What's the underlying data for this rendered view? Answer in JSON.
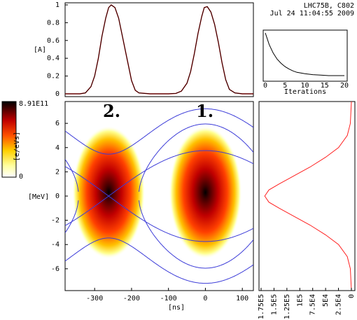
{
  "header": {
    "line1": "LHC75B, C802",
    "line2": "Jul 24 11:04:55 2009"
  },
  "chart_data": [
    {
      "id": "profile",
      "type": "line",
      "ylabel": "[A]",
      "xlim": [
        -380,
        130
      ],
      "ylim": [
        0,
        1
      ],
      "yticks": [
        "0",
        "0.2",
        "0.4",
        "0.6",
        "0.8",
        "1"
      ],
      "series": [
        {
          "color": "#cc0000",
          "x": [
            -380,
            -340,
            -325,
            -310,
            -300,
            -290,
            -280,
            -270,
            -262,
            -255,
            -245,
            -235,
            -225,
            -215,
            -205,
            -200,
            -190,
            -180,
            -150,
            -100,
            -80,
            -65,
            -50,
            -40,
            -30,
            -20,
            -10,
            -3,
            5,
            15,
            25,
            35,
            45,
            55,
            65,
            80,
            100,
            130
          ],
          "y": [
            0,
            0,
            0.01,
            0.08,
            0.2,
            0.4,
            0.65,
            0.85,
            0.97,
            1.0,
            0.97,
            0.85,
            0.65,
            0.45,
            0.25,
            0.15,
            0.04,
            0.01,
            0,
            0,
            0.005,
            0.03,
            0.12,
            0.25,
            0.45,
            0.68,
            0.87,
            0.97,
            0.98,
            0.92,
            0.78,
            0.58,
            0.35,
            0.16,
            0.05,
            0.01,
            0,
            0
          ]
        },
        {
          "color": "#000000",
          "x": [
            -380,
            -340,
            -325,
            -310,
            -300,
            -290,
            -280,
            -270,
            -262,
            -255,
            -245,
            -235,
            -225,
            -215,
            -205,
            -200,
            -190,
            -180,
            -150,
            -100,
            -80,
            -65,
            -50,
            -40,
            -30,
            -20,
            -10,
            -3,
            5,
            15,
            25,
            35,
            45,
            55,
            65,
            80,
            100,
            130
          ],
          "y": [
            0,
            0,
            0.01,
            0.08,
            0.2,
            0.4,
            0.65,
            0.85,
            0.97,
            1.0,
            0.97,
            0.85,
            0.65,
            0.45,
            0.25,
            0.15,
            0.04,
            0.01,
            0,
            0,
            0.005,
            0.03,
            0.12,
            0.25,
            0.45,
            0.68,
            0.87,
            0.97,
            0.98,
            0.92,
            0.78,
            0.58,
            0.35,
            0.16,
            0.05,
            0.01,
            0,
            0
          ]
        }
      ]
    },
    {
      "id": "iterations",
      "type": "line",
      "xlabel": "Iterations",
      "xlim": [
        0,
        20
      ],
      "xticks": [
        "0",
        "5",
        "10",
        "15",
        "20"
      ],
      "series": [
        {
          "color": "#000000",
          "x": [
            0,
            1,
            2,
            3,
            4,
            5,
            6,
            7,
            8,
            10,
            12,
            14,
            16,
            18,
            20
          ],
          "y": [
            1.0,
            0.75,
            0.57,
            0.44,
            0.35,
            0.28,
            0.23,
            0.19,
            0.16,
            0.13,
            0.11,
            0.1,
            0.09,
            0.09,
            0.09
          ]
        }
      ]
    },
    {
      "id": "phase-space",
      "type": "heatmap",
      "xlabel": "[ns]",
      "ylabel": "[MeV]",
      "xlim": [
        -380,
        130
      ],
      "ylim": [
        -7.8,
        7.8
      ],
      "xticks": [
        "-300",
        "-200",
        "-100",
        "0",
        "100"
      ],
      "yticks": [
        "-6",
        "-4",
        "-2",
        "0",
        "2",
        "4",
        "6"
      ],
      "annotations": [
        "2.",
        "1."
      ],
      "bunch_centers_ns": [
        -262,
        0
      ],
      "separatrix_color": "#3c3cd8"
    },
    {
      "id": "energy-projection",
      "type": "line",
      "xticks": [
        "1.75E5",
        "1.5E5",
        "1.25E5",
        "1E5",
        "7.5E4",
        "5E4",
        "2.5E4",
        "0"
      ],
      "series": [
        {
          "color": "#ff2020",
          "x": [
            0,
            2000,
            8000,
            25000,
            50000,
            80000,
            110000,
            140000,
            160000,
            168000,
            160000,
            140000,
            110000,
            80000,
            50000,
            25000,
            8000,
            2000,
            0
          ],
          "y": [
            7.8,
            6.0,
            5.0,
            4.0,
            3.2,
            2.4,
            1.7,
            1.0,
            0.5,
            0,
            -0.5,
            -1.0,
            -1.7,
            -2.4,
            -3.2,
            -4.0,
            -5.0,
            -6.0,
            -7.8
          ]
        }
      ]
    },
    {
      "id": "colorbar",
      "type": "heatmap",
      "max_label": "8.91E11",
      "unit": "[e/eVs]",
      "min_label": "0"
    }
  ]
}
